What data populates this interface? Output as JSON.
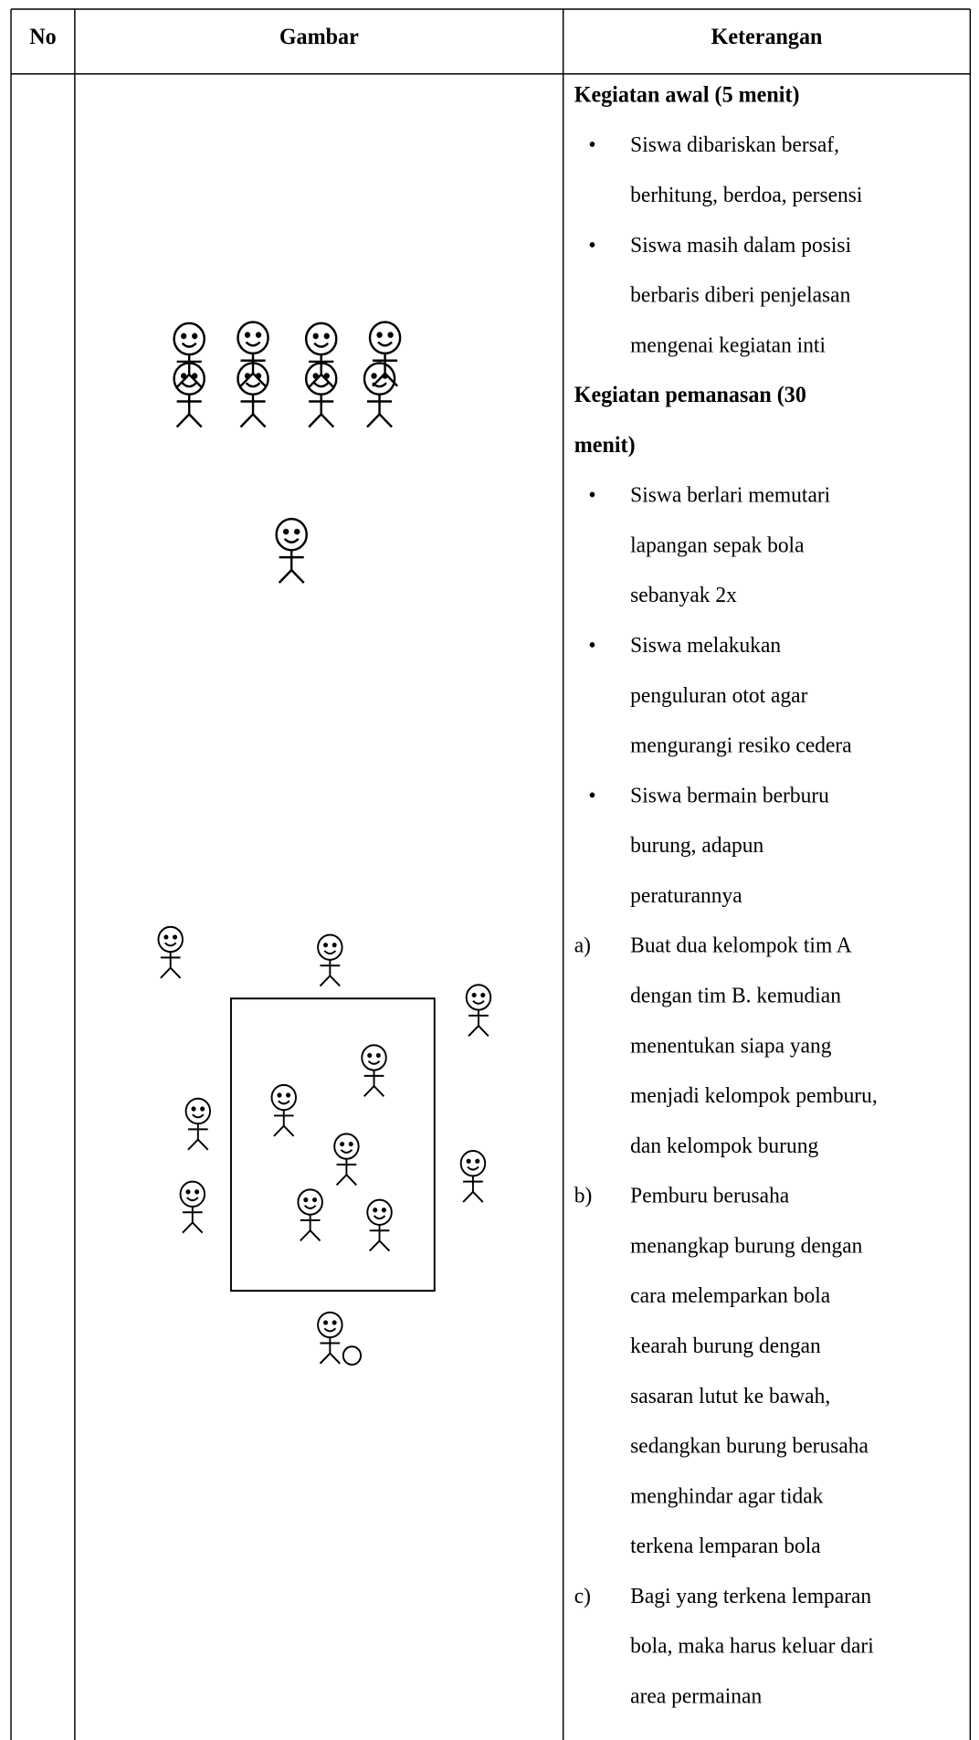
{
  "table": {
    "header": {
      "no": "No",
      "gambar": "Gambar",
      "keterangan": "Keterangan"
    },
    "sections": [
      {
        "heading": [
          "Kegiatan awal (5 menit)"
        ],
        "items": [
          {
            "marker": "•",
            "lines": [
              "Siswa dibariskan bersaf,",
              "berhitung, berdoa, persensi"
            ]
          },
          {
            "marker": "•",
            "lines": [
              "Siswa masih dalam posisi",
              "berbaris diberi penjelasan",
              "mengenai kegiatan inti"
            ]
          }
        ]
      },
      {
        "heading": [
          "Kegiatan pemanasan (30",
          "menit)"
        ],
        "items": [
          {
            "marker": "•",
            "lines": [
              "Siswa berlari memutari",
              "lapangan sepak bola",
              "sebanyak 2x"
            ]
          },
          {
            "marker": "•",
            "lines": [
              "Siswa melakukan",
              "penguluran otot agar",
              "mengurangi resiko cedera"
            ]
          },
          {
            "marker": "•",
            "lines": [
              "Siswa bermain berburu",
              "burung, adapun",
              "peraturannya"
            ]
          },
          {
            "marker": "a)",
            "lines": [
              "Buat dua kelompok tim A",
              "dengan tim B. kemudian",
              "menentukan siapa yang",
              "menjadi kelompok pemburu,",
              "dan kelompok burung"
            ]
          },
          {
            "marker": "b)",
            "lines": [
              "Pemburu berusaha",
              "menangkap burung dengan",
              "cara melemparkan bola",
              "kearah burung dengan",
              "sasaran lutut ke bawah,",
              "sedangkan burung berusaha",
              "menghindar agar tidak",
              "terkena lemparan bola"
            ]
          },
          {
            "marker": "c)",
            "lines": [
              "Bagi yang terkena lemparan",
              "bola, maka harus keluar dari",
              "area permainan"
            ]
          }
        ]
      }
    ]
  }
}
